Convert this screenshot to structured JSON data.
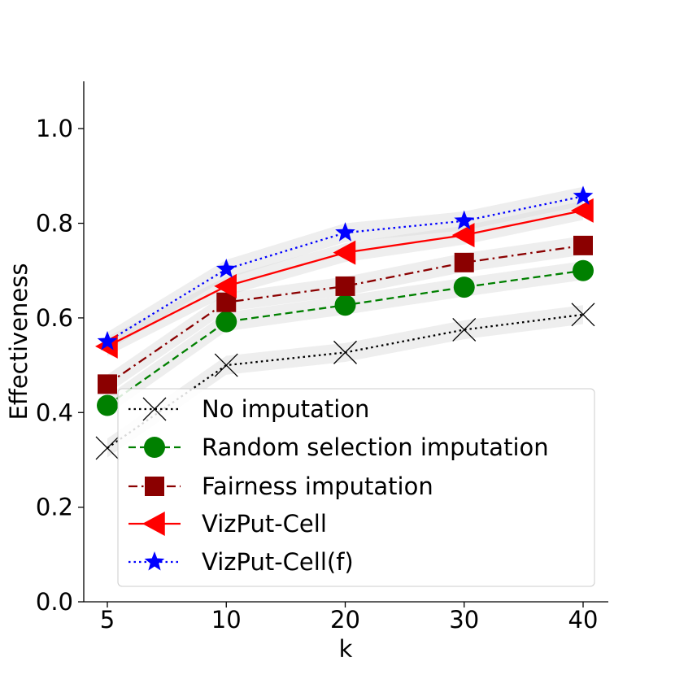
{
  "chart_data": {
    "type": "line",
    "title": "",
    "xlabel": "k",
    "ylabel": "Effectiveness",
    "categories": [
      "5",
      "10",
      "20",
      "30",
      "40"
    ],
    "ylim": [
      0.0,
      1.1
    ],
    "yticks": [
      "0.0",
      "0.2",
      "0.4",
      "0.6",
      "0.8",
      "1.0"
    ],
    "grid": false,
    "legend_position": "bottom-right",
    "series": [
      {
        "name": "No imputation",
        "values": [
          0.325,
          0.5,
          0.527,
          0.575,
          0.607
        ],
        "band": 0.02,
        "color": "#000000",
        "marker": "x",
        "dash": "dotted"
      },
      {
        "name": "Random selection imputation",
        "values": [
          0.415,
          0.592,
          0.627,
          0.665,
          0.7
        ],
        "band": 0.02,
        "color": "#008000",
        "marker": "circle",
        "dash": "dashed"
      },
      {
        "name": "Fairness imputation",
        "values": [
          0.46,
          0.633,
          0.667,
          0.717,
          0.753
        ],
        "band": 0.02,
        "color": "#8b0000",
        "marker": "square",
        "dash": "dashdot"
      },
      {
        "name": "VizPut-Cell",
        "values": [
          0.54,
          0.667,
          0.738,
          0.775,
          0.827
        ],
        "band": 0.02,
        "color": "#ff0000",
        "marker": "triangle-left",
        "dash": "solid"
      },
      {
        "name": "VizPut-Cell(f)",
        "values": [
          0.55,
          0.703,
          0.78,
          0.805,
          0.857
        ],
        "band": 0.02,
        "color": "#0000ff",
        "marker": "star",
        "dash": "dotted"
      }
    ]
  }
}
